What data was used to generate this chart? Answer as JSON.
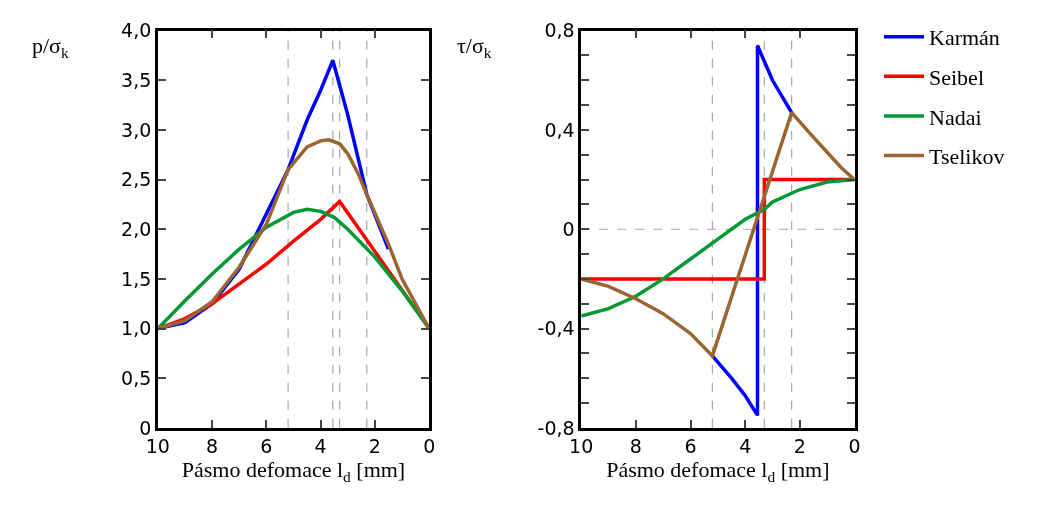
{
  "chart_data": [
    {
      "type": "line",
      "ylabel": "p/σ$_{k}$",
      "xlabel": "Pásmo defomace l$_{d}$ [mm]",
      "xlim": [
        10,
        0
      ],
      "xticks": [
        10,
        8,
        6,
        4,
        2,
        0
      ],
      "ylim": [
        0,
        4
      ],
      "yticks": [
        0,
        {
          "value": 0.5,
          "label": "0,5"
        },
        {
          "value": 1,
          "label": "1,0"
        },
        {
          "value": 1.5,
          "label": "1,5"
        },
        {
          "value": 2,
          "label": "2,0"
        },
        {
          "value": 2.5,
          "label": "2,5"
        },
        {
          "value": 3,
          "label": "3,0"
        },
        {
          "value": 3.5,
          "label": "3,5"
        },
        {
          "value": 4,
          "label": "4,0"
        }
      ],
      "grid": false,
      "line_style": "solid",
      "marker": "none",
      "legend": "right",
      "series": [
        {
          "name": "Karmán",
          "color": "#0000ff",
          "x": [
            10,
            9,
            8,
            7,
            5.2,
            4.5,
            4,
            3.55,
            3,
            2.3,
            1.5
          ],
          "values": [
            1.0,
            1.06,
            1.25,
            1.6,
            2.6,
            3.1,
            3.4,
            3.7,
            3.15,
            2.35,
            1.8
          ]
        },
        {
          "name": "Seibel",
          "color": "#ff0000",
          "x": [
            10,
            9,
            8,
            7,
            6,
            5,
            4,
            3.3,
            1.65,
            0
          ],
          "values": [
            1.0,
            1.1,
            1.25,
            1.45,
            1.65,
            1.88,
            2.1,
            2.28,
            1.64,
            1.0
          ]
        },
        {
          "name": "Nadai",
          "color": "#009933",
          "x": [
            10,
            9,
            8,
            7,
            6,
            5,
            4.5,
            4,
            3.5,
            3,
            2,
            1,
            0
          ],
          "values": [
            1.0,
            1.28,
            1.55,
            1.8,
            2.02,
            2.17,
            2.2,
            2.18,
            2.12,
            2.0,
            1.72,
            1.38,
            1.0
          ]
        },
        {
          "name": "Tselikov",
          "color": "#996633",
          "x": [
            10,
            9,
            8,
            7,
            6,
            5.2,
            4.5,
            4,
            3.7,
            3.3,
            3,
            2.6,
            2.3,
            1.5,
            1,
            0.5,
            0
          ],
          "values": [
            1.0,
            1.08,
            1.27,
            1.62,
            2.05,
            2.6,
            2.83,
            2.89,
            2.9,
            2.86,
            2.76,
            2.55,
            2.35,
            1.85,
            1.5,
            1.25,
            1.0
          ]
        }
      ],
      "ref_lines": [
        {
          "axis": "x",
          "value": 5.2,
          "color": "#a6a6a6",
          "line_style": "dashed"
        },
        {
          "axis": "x",
          "value": 3.55,
          "color": "#a6a6a6",
          "line_style": "dashed"
        },
        {
          "axis": "x",
          "value": 3.3,
          "color": "#a6a6a6",
          "line_style": "dashed"
        },
        {
          "axis": "x",
          "value": 2.3,
          "color": "#a6a6a6",
          "line_style": "dashed"
        }
      ]
    },
    {
      "type": "line",
      "ylabel": "τ/σ$_{k}$",
      "xlabel": "Pásmo defomace l$_{d}$ [mm]",
      "xlim": [
        10,
        0
      ],
      "xticks": [
        10,
        8,
        6,
        4,
        2,
        0
      ],
      "ylim": [
        -0.8,
        0.8
      ],
      "yticks": [
        {
          "value": -0.8,
          "label": "-0,8"
        },
        {
          "value": -0.7,
          "label": null
        },
        {
          "value": -0.6,
          "label": null
        },
        {
          "value": -0.5,
          "label": null
        },
        {
          "value": -0.4,
          "label": "-0,4"
        },
        {
          "value": -0.3,
          "label": null
        },
        {
          "value": -0.2,
          "label": null
        },
        {
          "value": -0.1,
          "label": null
        },
        0,
        {
          "value": 0.1,
          "label": null
        },
        {
          "value": 0.2,
          "label": null
        },
        {
          "value": 0.3,
          "label": null
        },
        {
          "value": 0.4,
          "label": "0,4"
        },
        {
          "value": 0.5,
          "label": null
        },
        {
          "value": 0.6,
          "label": null
        },
        {
          "value": 0.7,
          "label": null
        },
        {
          "value": 0.8,
          "label": "0,8"
        }
      ],
      "grid": false,
      "line_style": "solid",
      "marker": "none",
      "series": [
        {
          "color": "#0000ff",
          "x": [
            5.2,
            4.5,
            4,
            3.55,
            3.55,
            3,
            2.3
          ],
          "values": [
            -0.51,
            -0.6,
            -0.67,
            -0.75,
            0.74,
            0.6,
            0.47
          ]
        },
        {
          "color": "#ff0000",
          "x": [
            10,
            3.3,
            3.3,
            0
          ],
          "values": [
            -0.2,
            -0.2,
            0.2,
            0.2
          ]
        },
        {
          "color": "#009933",
          "x": [
            10,
            9,
            8,
            7,
            6,
            5,
            4,
            3.3,
            3,
            2,
            1,
            0
          ],
          "values": [
            -0.35,
            -0.32,
            -0.27,
            -0.2,
            -0.12,
            -0.04,
            0.04,
            0.08,
            0.11,
            0.16,
            0.19,
            0.2
          ]
        },
        {
          "color": "#996633",
          "x": [
            10,
            9,
            8,
            7,
            6,
            5.2,
            2.3,
            1.5,
            1,
            0.5,
            0
          ],
          "values": [
            -0.2,
            -0.23,
            -0.28,
            -0.34,
            -0.42,
            -0.51,
            0.47,
            0.37,
            0.31,
            0.25,
            0.2
          ]
        }
      ],
      "ref_lines": [
        {
          "axis": "x",
          "value": 5.2,
          "color": "#a6a6a6",
          "line_style": "dashed"
        },
        {
          "axis": "x",
          "value": 3.3,
          "color": "#a6a6a6",
          "line_style": "dashed"
        },
        {
          "axis": "x",
          "value": 2.3,
          "color": "#a6a6a6",
          "line_style": "dashed"
        },
        {
          "axis": "y",
          "value": 0,
          "color": "#a6a6a6",
          "line_style": "dashed"
        }
      ]
    }
  ]
}
